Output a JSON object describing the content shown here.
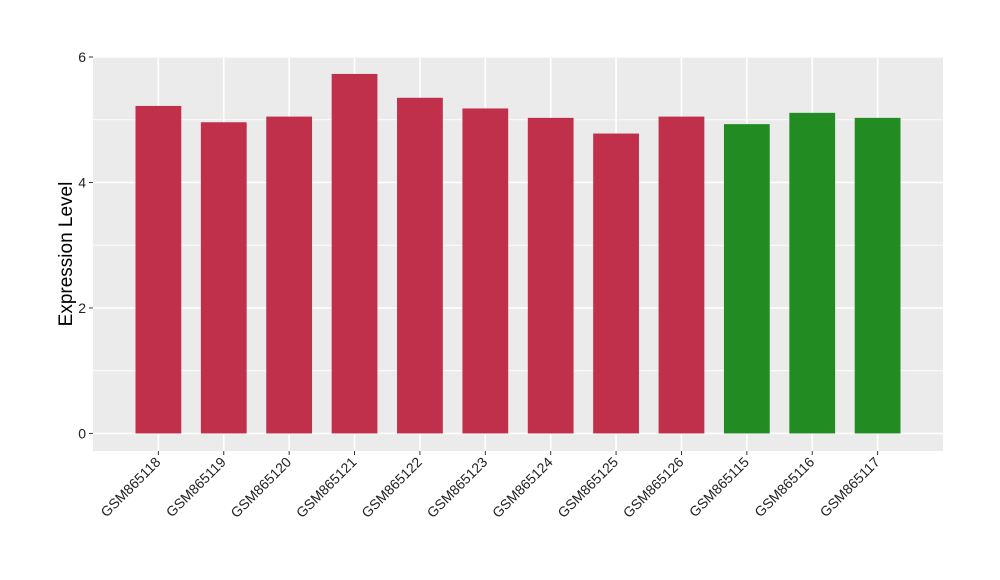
{
  "chart_data": {
    "type": "bar",
    "title": "",
    "xlabel": "",
    "ylabel": "Expression Level",
    "ylim": [
      -0.28,
      6.0
    ],
    "yticks": [
      0,
      2,
      4,
      6
    ],
    "grid": true,
    "legend": "none",
    "panel_color": "#EBEBEB",
    "grid_color": "#FFFFFF",
    "categories": [
      "GSM865118",
      "GSM865119",
      "GSM865120",
      "GSM865121",
      "GSM865122",
      "GSM865123",
      "GSM865124",
      "GSM865125",
      "GSM865126",
      "GSM865115",
      "GSM865116",
      "GSM865117"
    ],
    "values": [
      5.22,
      4.96,
      5.05,
      5.73,
      5.35,
      5.18,
      5.03,
      4.78,
      5.05,
      4.93,
      5.11,
      5.03
    ],
    "bar_colors": [
      "#C0304A",
      "#C0304A",
      "#C0304A",
      "#C0304A",
      "#C0304A",
      "#C0304A",
      "#C0304A",
      "#C0304A",
      "#C0304A",
      "#228B22",
      "#228B22",
      "#228B22"
    ]
  }
}
